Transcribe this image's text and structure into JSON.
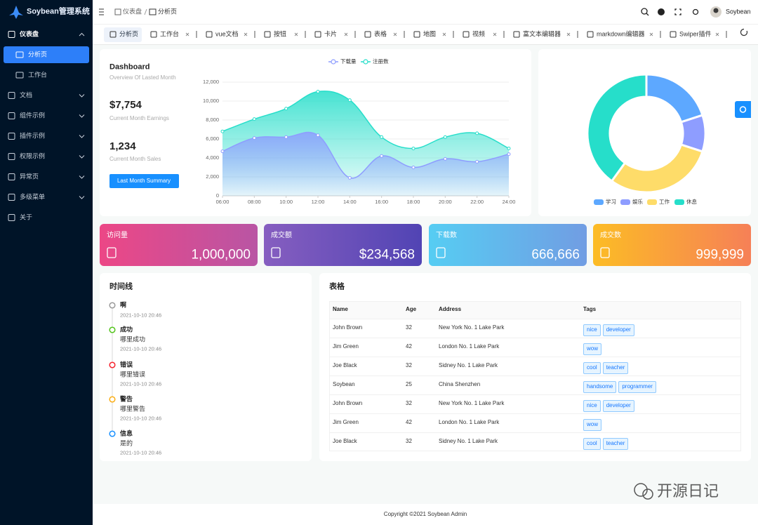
{
  "sidebar": {
    "logo": "Soybean管理系统",
    "menu": [
      "仪表盘",
      "文档",
      "组件示例",
      "插件示例",
      "权限示例",
      "异常页",
      "多级菜单",
      "关于"
    ],
    "submenu": [
      "分析页",
      "工作台"
    ]
  },
  "header": {
    "breadcrumb": [
      "仪表盘",
      "分析页"
    ],
    "user": "Soybean"
  },
  "tabs": [
    "分析页",
    "工作台",
    "vue文档",
    "按钮",
    "卡片",
    "表格",
    "地图",
    "视频",
    "富文本编辑器",
    "markdown编辑器",
    "Swiper插件"
  ],
  "dashboard": {
    "title": "Dashboard",
    "subtitle": "Overview Of Lasted Month",
    "stats": [
      {
        "value": "$7,754",
        "label": "Current Month Earnings"
      },
      {
        "value": "1,234",
        "label": "Current Month Sales"
      }
    ],
    "button": "Last Month Summary"
  },
  "chart_data": [
    {
      "type": "area",
      "categories": [
        "06:00",
        "08:00",
        "10:00",
        "12:00",
        "14:00",
        "16:00",
        "18:00",
        "20:00",
        "22:00",
        "24:00"
      ],
      "series": [
        {
          "name": "下载量",
          "color": "#8e9dff",
          "values": [
            4700,
            6100,
            6200,
            6400,
            1900,
            4200,
            3000,
            3900,
            3600,
            4400
          ]
        },
        {
          "name": "注册数",
          "color": "#26deca",
          "values": [
            6800,
            8100,
            9200,
            11000,
            10100,
            6200,
            5000,
            6200,
            6600,
            5000
          ]
        }
      ],
      "ylim": [
        0,
        12000
      ],
      "yticks": [
        0,
        {
          "value": 2000,
          "label": "2,000"
        },
        {
          "value": 4000,
          "label": "4,000"
        },
        {
          "value": 6000,
          "label": "6,000"
        },
        {
          "value": 8000,
          "label": "8,000"
        },
        {
          "value": 10000,
          "label": "10,000"
        },
        {
          "value": 12000,
          "label": "12,000"
        }
      ],
      "grid": true,
      "legend": "top"
    },
    {
      "type": "donut",
      "categories": [
        "学习",
        "娱乐",
        "工作",
        "休息"
      ],
      "values": [
        20,
        10,
        30,
        40
      ],
      "colors": [
        "#5da8ff",
        "#8e9dff",
        "#fedc69",
        "#26deca"
      ],
      "legend": "bottom"
    }
  ],
  "cards": [
    {
      "title": "访问量",
      "value": "1,000,000",
      "colors": [
        "#ec4786",
        "#b955a4"
      ]
    },
    {
      "title": "成交额",
      "value": "$234,568",
      "colors": [
        "#865ec0",
        "#5144b4"
      ]
    },
    {
      "title": "下载数",
      "value": "666,666",
      "colors": [
        "#56cdf3",
        "#719de3"
      ]
    },
    {
      "title": "成交数",
      "value": "999,999",
      "colors": [
        "#fcbc25",
        "#f68057"
      ]
    }
  ],
  "timeline": {
    "title": "时间线",
    "items": [
      {
        "title": "啊",
        "time": "2021-10-10 20:46",
        "color": "#999999"
      },
      {
        "title": "成功",
        "content": "哪里成功",
        "time": "2021-10-10 20:46",
        "color": "#52c41a"
      },
      {
        "title": "错误",
        "content": "哪里错误",
        "time": "2021-10-10 20:46",
        "color": "#f5222d"
      },
      {
        "title": "警告",
        "content": "哪里警告",
        "time": "2021-10-10 20:46",
        "color": "#faad14"
      },
      {
        "title": "信息",
        "content": "是的",
        "time": "2021-10-10 20:46",
        "color": "#1890ff"
      }
    ]
  },
  "table": {
    "title": "表格",
    "columns": [
      "Name",
      "Age",
      "Address",
      "Tags"
    ],
    "rows": [
      [
        "John Brown",
        32,
        "New York No. 1 Lake Park",
        [
          "nice",
          "developer"
        ]
      ],
      [
        "Jim Green",
        42,
        "London No. 1 Lake Park",
        [
          "wow"
        ]
      ],
      [
        "Joe Black",
        32,
        "Sidney No. 1 Lake Park",
        [
          "cool",
          "teacher"
        ]
      ],
      [
        "Soybean",
        25,
        "China Shenzhen",
        [
          "handsome",
          "programmer"
        ]
      ],
      [
        "John Brown",
        32,
        "New York No. 1 Lake Park",
        [
          "nice",
          "developer"
        ]
      ],
      [
        "Jim Green",
        42,
        "London No. 1 Lake Park",
        [
          "wow"
        ]
      ],
      [
        "Joe Black",
        32,
        "Sidney No. 1 Lake Park",
        [
          "cool",
          "teacher"
        ]
      ]
    ]
  },
  "footer": "Copyright ©2021 Soybean Admin",
  "watermark": "开源日记"
}
